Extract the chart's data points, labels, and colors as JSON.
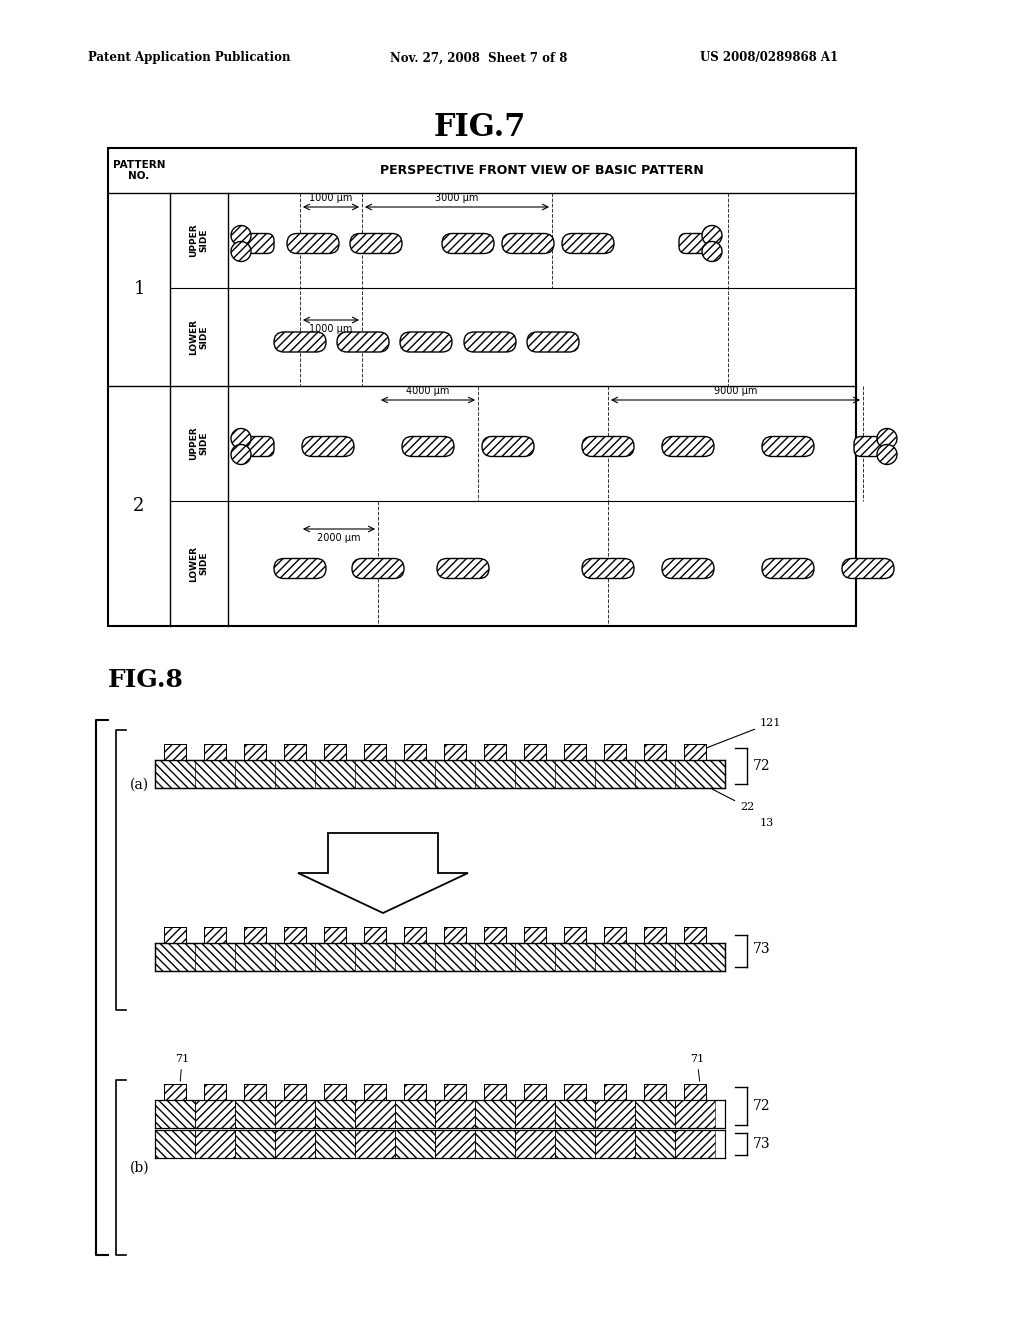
{
  "title_header_left": "Patent Application Publication",
  "title_header_mid": "Nov. 27, 2008  Sheet 7 of 8",
  "title_header_right": "US 2008/0289868 A1",
  "fig7_title": "FIG.7",
  "fig8_title": "FIG.8",
  "bg_color": "#ffffff",
  "pattern1_upper_meas1": "1000 μm",
  "pattern1_upper_meas2": "3000 μm",
  "pattern1_lower_meas": "1000 μm",
  "pattern2_upper_meas1": "4000 μm",
  "pattern2_upper_meas2": "9000 μm",
  "pattern2_lower_meas": "2000 μm",
  "label_121": "121",
  "label_22": "22",
  "label_13": "13",
  "label_72a": "72",
  "label_73a": "73",
  "label_72b": "72",
  "label_73b": "73",
  "label_71a": "71",
  "label_71b": "71",
  "label_a": "(a)",
  "label_b": "(b)"
}
